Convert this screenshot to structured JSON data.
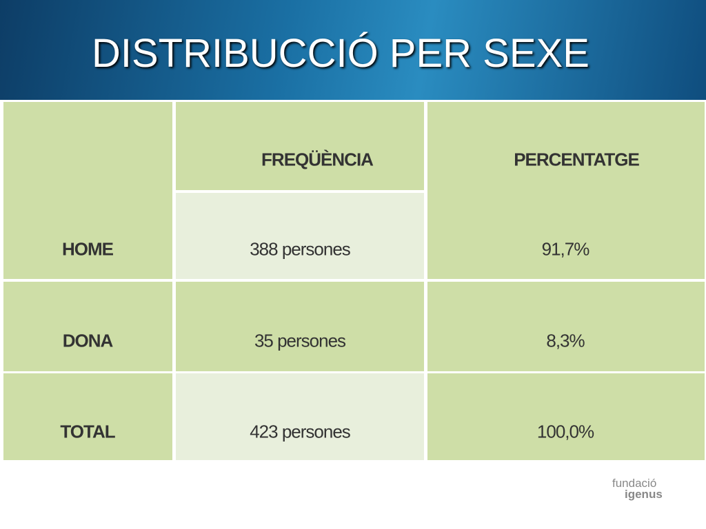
{
  "header": {
    "title": "DISTRIBUCCIÓ PER SEXE"
  },
  "table": {
    "columns": [
      "FREQÜÈNCIA",
      "PERCENTATGE"
    ],
    "rows": [
      [
        "HOME",
        "388 persones",
        "91,7%"
      ],
      [
        "DONA",
        "35 persones",
        "8,3%"
      ],
      [
        "TOTAL",
        "423 persones",
        "100,0%"
      ]
    ]
  },
  "logo": {
    "line1": "fundació",
    "line2": "igenus"
  }
}
